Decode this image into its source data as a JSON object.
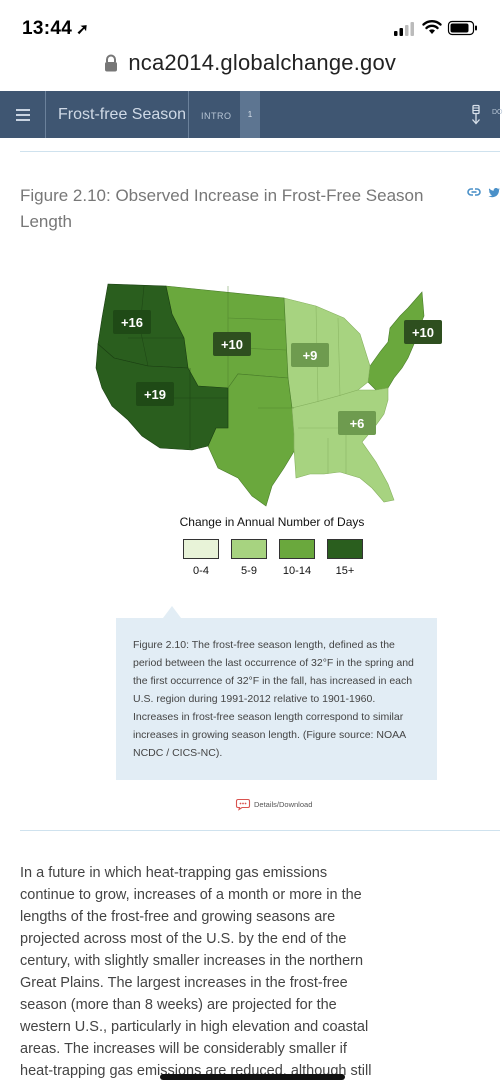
{
  "status": {
    "time": "13:44"
  },
  "browser": {
    "url": "nca2014.globalchange.gov"
  },
  "nav": {
    "section_title": "Frost-free Season",
    "intro_label": "INTRO",
    "page_number": "1",
    "download_label": "DO"
  },
  "figure": {
    "title": "Figure 2.10: Observed Increase in Frost-Free Season Length",
    "map_labels": [
      "+16",
      "+10",
      "+9",
      "+10",
      "+19",
      "+6"
    ],
    "legend": {
      "title": "Change in Annual Number of Days",
      "items": [
        {
          "label": "0-4",
          "color": "#e8f3d8"
        },
        {
          "label": "5-9",
          "color": "#a7d380"
        },
        {
          "label": "10-14",
          "color": "#6aa83d"
        },
        {
          "label": "15+",
          "color": "#2a5e1e"
        }
      ]
    },
    "caption": "Figure 2.10: The frost-free season length, defined as the period between the last occurrence of 32°F in the spring and the first occurrence of 32°F in the fall, has increased in each U.S. region during 1991-2012 relative to 1901-1960. Increases in frost-free season length correspond to similar increases in growing season length. (Figure source: NOAA NCDC / CICS-NC).",
    "details_link": "Details/Download"
  },
  "body": {
    "paragraph": "In a future in which heat-trapping gas emissions continue to grow, increases of a month or more in the lengths of the frost-free and growing seasons are projected across most of the U.S. by the end of the century, with slightly smaller increases in the northern Great Plains. The largest increases in the frost-free season (more than 8 weeks) are projected for the western U.S., particularly in high elevation and coastal areas. The increases will be considerably smaller if heat-trapping gas emissions are reduced, although still"
  },
  "colors": {
    "nav_bg": "#3f5672",
    "caption_bg": "#e2edf5",
    "link_blue": "#4a90c8"
  }
}
